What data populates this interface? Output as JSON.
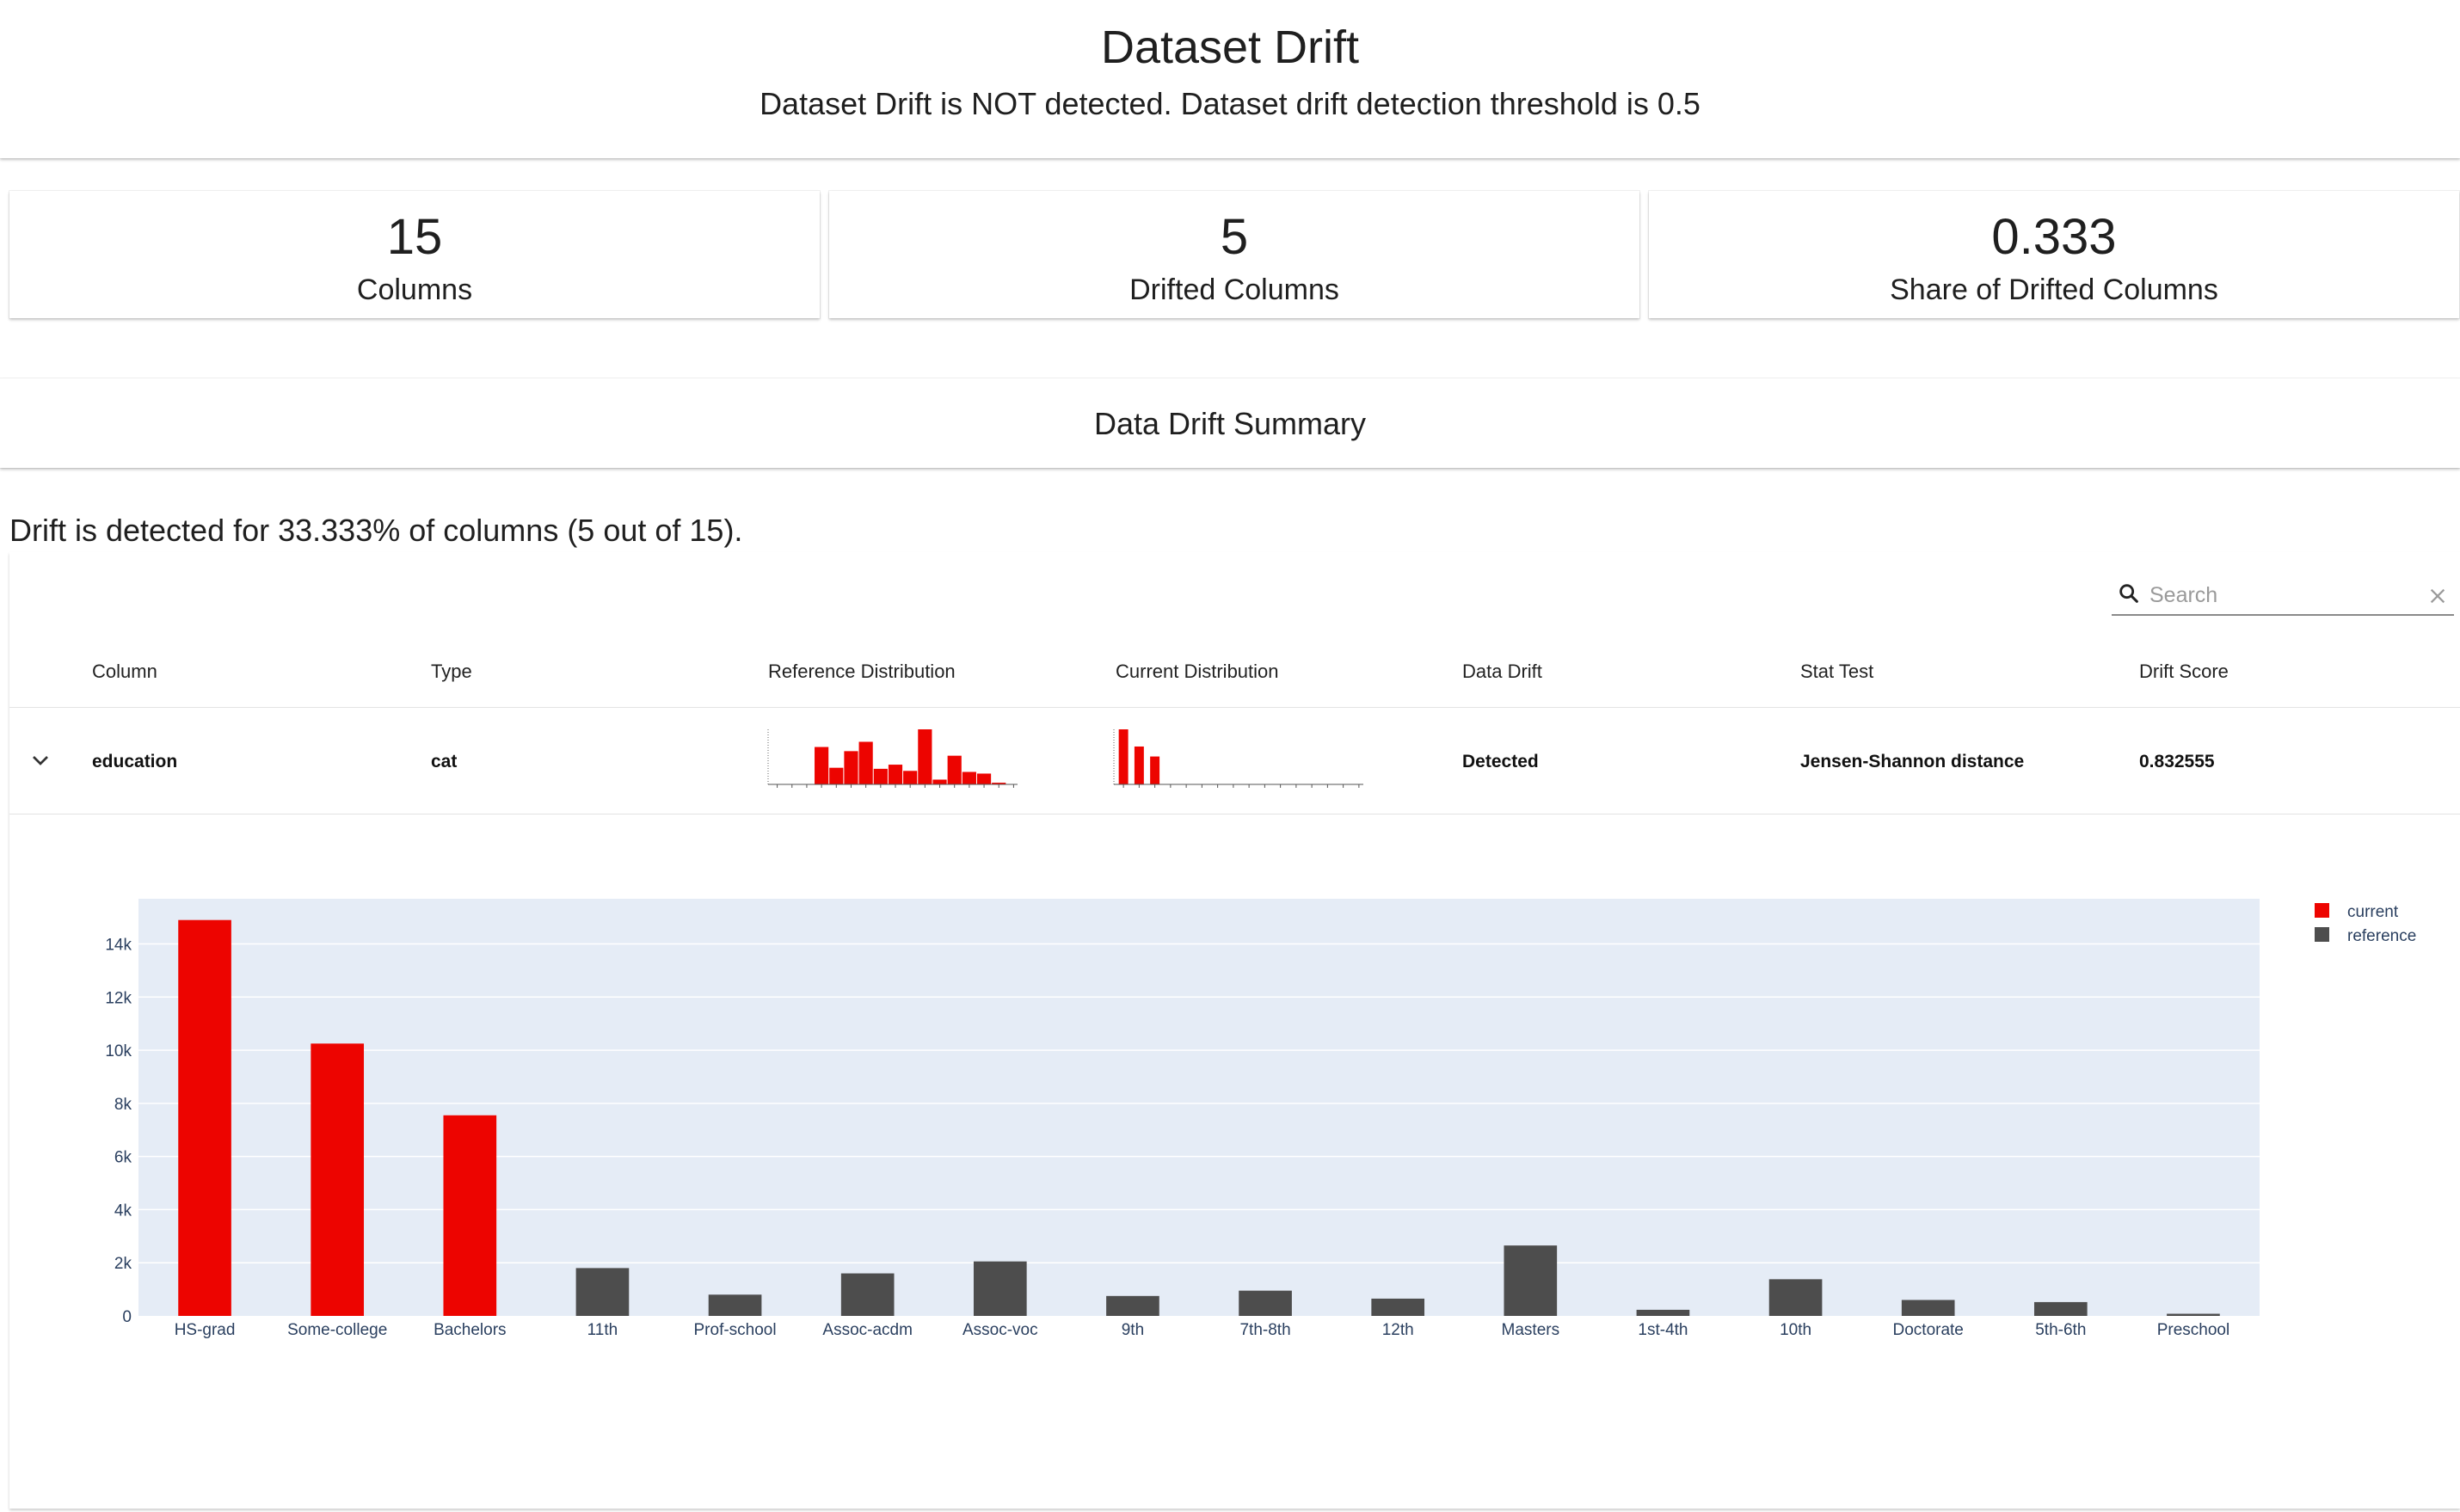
{
  "header": {
    "title": "Dataset Drift",
    "subtitle": "Dataset Drift is NOT detected. Dataset drift detection threshold is 0.5"
  },
  "counters": [
    {
      "value": "15",
      "label": "Columns"
    },
    {
      "value": "5",
      "label": "Drifted Columns"
    },
    {
      "value": "0.333",
      "label": "Share of Drifted Columns"
    }
  ],
  "summary": {
    "title": "Data Drift Summary",
    "text": "Drift is detected for 33.333% of columns (5 out of 15)."
  },
  "search": {
    "placeholder": "Search",
    "icon": "search-icon",
    "clear_icon": "close-icon"
  },
  "table": {
    "columns": [
      "Column",
      "Type",
      "Reference Distribution",
      "Current Distribution",
      "Data Drift",
      "Stat Test",
      "Drift Score"
    ],
    "rows": [
      {
        "expand_icon": "chevron-down-icon",
        "column": "education",
        "type": "cat",
        "data_drift": "Detected",
        "stat_test": "Jensen-Shannon distance",
        "drift_score": "0.832555"
      }
    ]
  },
  "colors": {
    "current": "#ed0400",
    "reference": "#4d4d4d",
    "plot_bg": "#e5ecf6",
    "axis_text": "#2a3f5f"
  },
  "chart_data": [
    {
      "type": "bar",
      "categories": [
        "HS-grad",
        "Some-college",
        "Bachelors",
        "11th",
        "Prof-school",
        "Assoc-acdm",
        "Assoc-voc",
        "9th",
        "7th-8th",
        "12th",
        "Masters",
        "1st-4th",
        "10th",
        "Doctorate",
        "5th-6th",
        "Preschool"
      ],
      "series": [
        {
          "name": "current",
          "color": "#ed0400",
          "values": [
            14900,
            10250,
            7550,
            0,
            0,
            0,
            0,
            0,
            0,
            0,
            0,
            0,
            0,
            0,
            0,
            0
          ]
        },
        {
          "name": "reference",
          "color": "#4d4d4d",
          "values": [
            0,
            0,
            0,
            1800,
            800,
            1600,
            2050,
            750,
            950,
            650,
            2650,
            230,
            1380,
            600,
            520,
            80
          ]
        }
      ],
      "yticks": [
        "0",
        "2k",
        "4k",
        "6k",
        "8k",
        "10k",
        "12k",
        "14k"
      ],
      "ylim": [
        0,
        15700
      ],
      "grid": true,
      "legend": "top-right"
    }
  ]
}
